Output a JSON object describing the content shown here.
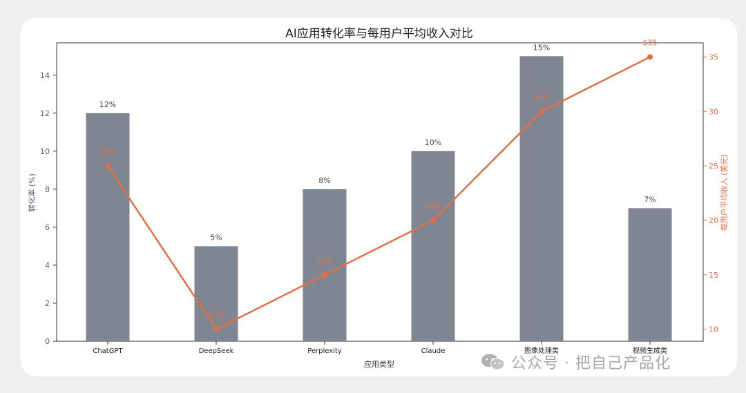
{
  "watermark": "公众号 · 把自己产品化",
  "colors": {
    "bar": "#7f8691",
    "line": "#e07048",
    "axis_text_left": "#555e6d",
    "axis_text_right": "#e07048",
    "title": "#222222"
  },
  "chart_data": {
    "type": "bar",
    "title": "AI应用转化率与每用户平均收入对比",
    "xlabel": "应用类型",
    "ylabel": "转化率 (%)",
    "y2label": "每用户平均收入 (美元)",
    "categories": [
      "ChatGPT",
      "DeepSeek",
      "Perplexity",
      "Claude",
      "图像处理类",
      "视频生成类"
    ],
    "ylim": [
      0,
      15.7
    ],
    "yticks": [
      0,
      2,
      4,
      6,
      8,
      10,
      12,
      14
    ],
    "y2lim": [
      8.9,
      36.3
    ],
    "y2ticks": [
      10,
      15,
      20,
      25,
      30,
      35
    ],
    "grid": false,
    "series": [
      {
        "name": "转化率",
        "type": "bar",
        "axis": "left",
        "values": [
          12,
          5,
          8,
          10,
          15,
          7
        ],
        "labels": [
          "12%",
          "5%",
          "8%",
          "10%",
          "15%",
          "7%"
        ]
      },
      {
        "name": "每用户平均收入",
        "type": "line",
        "axis": "right",
        "values": [
          25,
          10,
          15,
          20,
          30,
          35
        ],
        "labels": [
          "$25",
          "$10",
          "$15",
          "$20",
          "$30",
          "$35"
        ]
      }
    ]
  }
}
